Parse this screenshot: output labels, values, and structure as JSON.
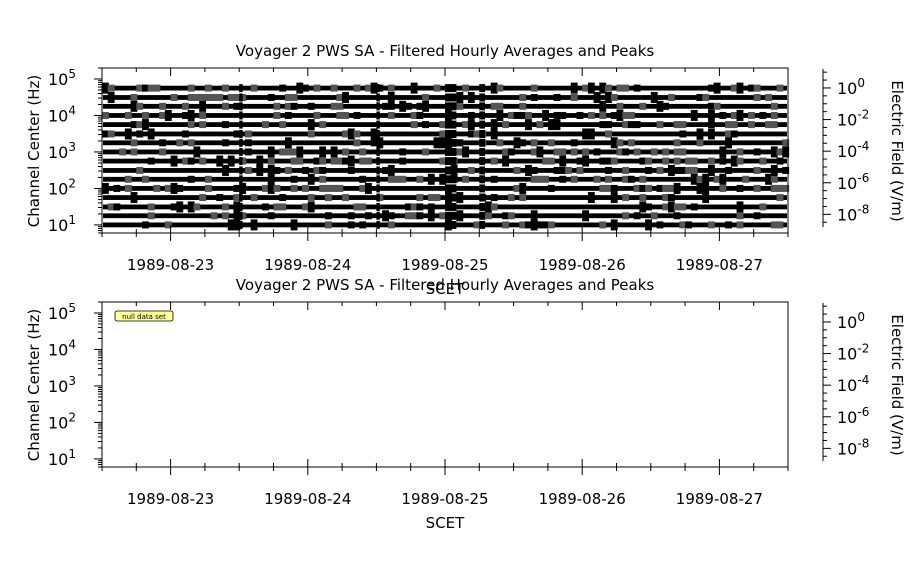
{
  "chart_data": [
    {
      "type": "heatmap",
      "title": "Voyager 2 PWS SA - Filtered Hourly Averages and Peaks",
      "xlabel": "SCET",
      "ylabel": "Channel Center (Hz)",
      "ylabel_right": "Electric Field (V/m)",
      "x_tick_labels": [
        "1989-08-23",
        "1989-08-24",
        "1989-08-25",
        "1989-08-26",
        "1989-08-27"
      ],
      "xlim": [
        "1989-08-22 12:00",
        "1989-08-27 12:00"
      ],
      "y_scale": "log",
      "ylim": [
        6,
        200000
      ],
      "y_ticks": [
        10,
        100,
        1000,
        10000,
        100000
      ],
      "y_tick_labels": [
        {
          "base": "10",
          "exp": "1"
        },
        {
          "base": "10",
          "exp": "2"
        },
        {
          "base": "10",
          "exp": "3"
        },
        {
          "base": "10",
          "exp": "4"
        },
        {
          "base": "10",
          "exp": "5"
        }
      ],
      "colorbar_scale": "log",
      "colorbar_ticks": [
        1,
        0.01,
        0.0001,
        1e-06,
        1e-08
      ],
      "colorbar_tick_labels": [
        {
          "base": "10",
          "exp": "0"
        },
        {
          "base": "10",
          "exp": "-2"
        },
        {
          "base": "10",
          "exp": "-4"
        },
        {
          "base": "10",
          "exp": "-6"
        },
        {
          "base": "10",
          "exp": "-8"
        }
      ],
      "channels_hz": [
        10,
        17.8,
        31.1,
        56.2,
        100,
        178,
        311,
        562,
        1000,
        1780,
        3110,
        5620,
        10000,
        17800,
        31100,
        56200
      ],
      "grid": false
    },
    {
      "type": "heatmap",
      "title": "Voyager 2 PWS SA - Filtered Hourly Averages and Peaks",
      "xlabel": "SCET",
      "ylabel": "Channel Center (Hz)",
      "ylabel_right": "Electric Field (V/m)",
      "x_tick_labels": [
        "1989-08-23",
        "1989-08-24",
        "1989-08-25",
        "1989-08-26",
        "1989-08-27"
      ],
      "xlim": [
        "1989-08-22 12:00",
        "1989-08-27 12:00"
      ],
      "y_scale": "log",
      "ylim": [
        6,
        200000
      ],
      "y_ticks": [
        10,
        100,
        1000,
        10000,
        100000
      ],
      "y_tick_labels": [
        {
          "base": "10",
          "exp": "1"
        },
        {
          "base": "10",
          "exp": "2"
        },
        {
          "base": "10",
          "exp": "3"
        },
        {
          "base": "10",
          "exp": "4"
        },
        {
          "base": "10",
          "exp": "5"
        }
      ],
      "colorbar_scale": "log",
      "colorbar_ticks": [
        1,
        0.01,
        0.0001,
        1e-06,
        1e-08
      ],
      "colorbar_tick_labels": [
        {
          "base": "10",
          "exp": "0"
        },
        {
          "base": "10",
          "exp": "-2"
        },
        {
          "base": "10",
          "exp": "-4"
        },
        {
          "base": "10",
          "exp": "-6"
        },
        {
          "base": "10",
          "exp": "-8"
        }
      ],
      "annotation": "null data set",
      "grid": false
    }
  ]
}
